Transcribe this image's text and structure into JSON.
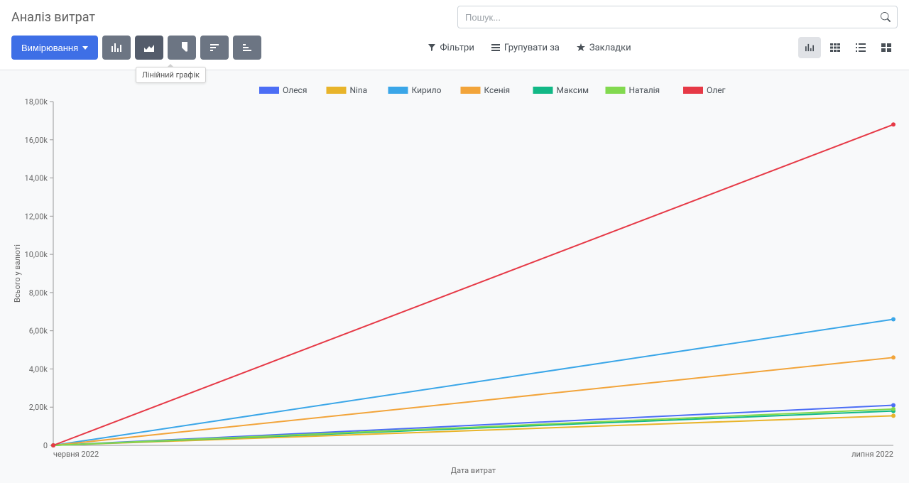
{
  "header": {
    "title": "Аналіз витрат",
    "search_placeholder": "Пошук...",
    "measures_label": "Вимірювання",
    "tooltip": "Лінійний графік",
    "filters_label": "Фільтри",
    "groupby_label": "Групувати за",
    "favorites_label": "Закладки"
  },
  "chart": {
    "type": "line",
    "x_axis_title": "Дата витрат",
    "y_axis_title": "Всього у валюті",
    "x_labels": [
      "червня 2022",
      "липня 2022"
    ],
    "y_ticks": [
      0,
      2000,
      4000,
      6000,
      8000,
      10000,
      12000,
      14000,
      16000,
      18000
    ],
    "y_tick_labels": [
      "0",
      "2,00k",
      "4,00k",
      "6,00k",
      "8,00k",
      "10,00k",
      "12,00k",
      "14,00k",
      "16,00k",
      "18,00k"
    ],
    "ylim": [
      0,
      18000
    ],
    "plot_bg": "#ffffff",
    "border_color": "#999999",
    "line_width": 2,
    "marker_radius": 3,
    "legend": [
      {
        "label": "Олеся",
        "color": "#4c6ef5"
      },
      {
        "label": "Nina",
        "color": "#e8b42a"
      },
      {
        "label": "Кирило",
        "color": "#3aa6e8"
      },
      {
        "label": "Ксенія",
        "color": "#f2a43a"
      },
      {
        "label": "Максим",
        "color": "#12b886"
      },
      {
        "label": "Наталія",
        "color": "#82d94f"
      },
      {
        "label": "Олег",
        "color": "#e63946"
      }
    ],
    "series": [
      {
        "name": "Олеся",
        "color": "#4c6ef5",
        "values": [
          0,
          2100
        ]
      },
      {
        "name": "Nina",
        "color": "#e8b42a",
        "values": [
          0,
          1550
        ]
      },
      {
        "name": "Кирило",
        "color": "#3aa6e8",
        "values": [
          0,
          6600
        ]
      },
      {
        "name": "Ксенія",
        "color": "#f2a43a",
        "values": [
          0,
          4600
        ]
      },
      {
        "name": "Максим",
        "color": "#12b886",
        "values": [
          0,
          1800
        ]
      },
      {
        "name": "Наталія",
        "color": "#82d94f",
        "values": [
          0,
          1900
        ]
      },
      {
        "name": "Олег",
        "color": "#e63946",
        "values": [
          0,
          16800
        ]
      }
    ]
  }
}
